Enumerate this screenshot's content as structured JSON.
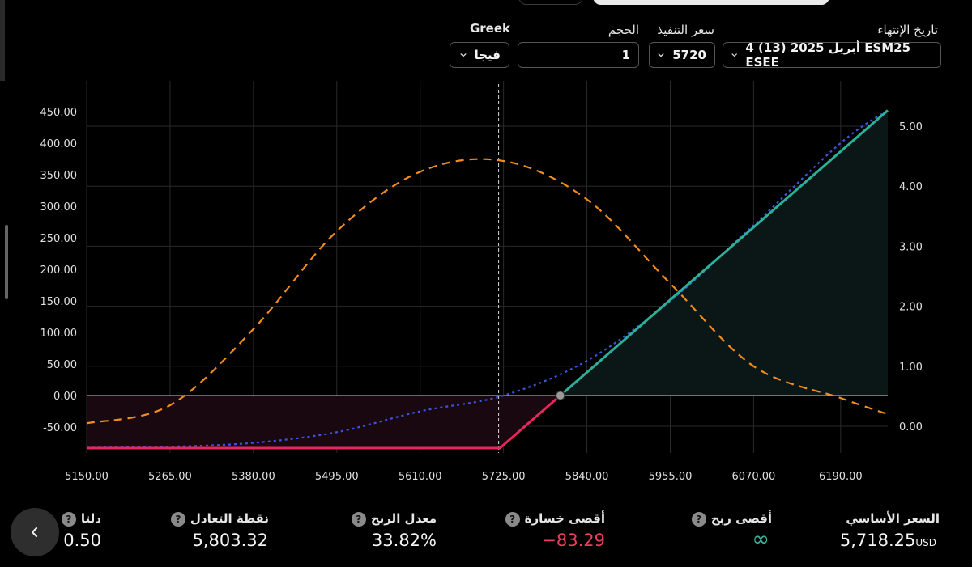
{
  "controls": {
    "expiry": {
      "label": "تاريخ الإنتهاء",
      "value": "4 أبريل 2025 (13) ESM25 ESEE"
    },
    "strike": {
      "label": "سعر التنفيذ",
      "value": "5720"
    },
    "volume": {
      "label": "الحجم",
      "value": "1"
    },
    "greek": {
      "label": "Greek",
      "value": "فيجا"
    }
  },
  "stats": {
    "underlying": {
      "label": "السعر الأساسي",
      "value": "5,718.25",
      "unit": "USD"
    },
    "max_profit": {
      "label": "أقصى ربح",
      "value": "∞"
    },
    "max_loss": {
      "label": "أقصى خسارة",
      "value": "−83.29"
    },
    "profit_rate": {
      "label": "معدل الربح",
      "value": "33.82%"
    },
    "breakeven": {
      "label": "نقطة التعادل",
      "value": "5,803.32"
    },
    "delta": {
      "label": "دلتا",
      "value": "0.50"
    }
  },
  "colors": {
    "profit": "#2bb19a",
    "loss": "#e8265e",
    "vega": "#f28c1c",
    "expected": "#3a54e6",
    "profit_fill": "#0b1716",
    "loss_fill": "#1a0810"
  },
  "icons": {
    "help": "question-circle-icon",
    "back": "chevron-left-icon",
    "dropdown": "chevron-down-icon"
  },
  "chart_data": {
    "type": "line",
    "x_tick_labels": [
      "5150.00",
      "5265.00",
      "5380.00",
      "5495.00",
      "5610.00",
      "5725.00",
      "5840.00",
      "5955.00",
      "6070.00",
      "6190.00"
    ],
    "x_tick_values": [
      5150,
      5265,
      5380,
      5495,
      5610,
      5725,
      5840,
      5955,
      6070,
      6190
    ],
    "xlim": [
      5150,
      6255
    ],
    "y_left_ticks": [
      -50,
      0,
      50,
      100,
      150,
      200,
      250,
      300,
      350,
      400,
      450
    ],
    "y_left_tick_labels": [
      "-50.00",
      "0.00",
      "50.00",
      "100.00",
      "150.00",
      "200.00",
      "250.00",
      "300.00",
      "350.00",
      "400.00",
      "450.00"
    ],
    "ylim_left": [
      -83.29,
      470
    ],
    "y_right_ticks": [
      0,
      1,
      2,
      3,
      4,
      5
    ],
    "y_right_tick_labels": [
      "0.00",
      "1.00",
      "2.00",
      "3.00",
      "4.00",
      "5.00"
    ],
    "current_price": 5718.25,
    "breakeven": 5803.32,
    "series": [
      {
        "axis": "left",
        "style": "solid",
        "x": [
          5150,
          5720,
          5803.32,
          6255
        ],
        "y": [
          -83.29,
          -83.29,
          0,
          451.7
        ]
      },
      {
        "axis": "left",
        "style": "dotted",
        "x": [
          5150,
          5265,
          5380,
          5495,
          5610,
          5725,
          5840,
          5955,
          6070,
          6190,
          6255
        ],
        "y": [
          -82.5,
          -81,
          -75,
          -58,
          -25,
          0,
          55,
          150,
          270,
          400,
          452
        ]
      },
      {
        "axis": "right",
        "style": "dashed",
        "x": [
          5150,
          5265,
          5380,
          5495,
          5610,
          5725,
          5840,
          5955,
          6070,
          6190,
          6255
        ],
        "y": [
          0.05,
          0.35,
          1.62,
          3.25,
          4.24,
          4.42,
          3.78,
          2.38,
          1.0,
          0.47,
          0.2
        ]
      }
    ]
  }
}
